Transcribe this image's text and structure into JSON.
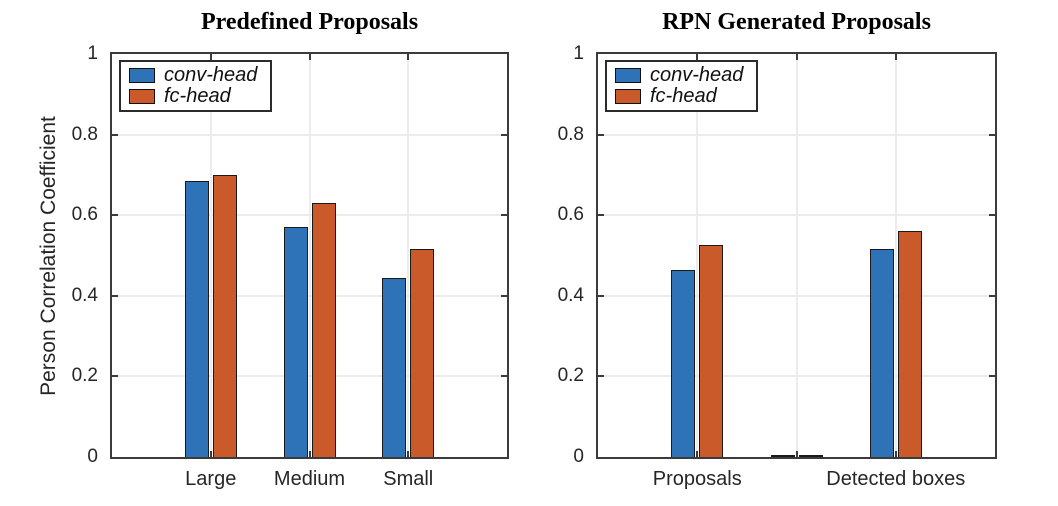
{
  "figure": {
    "background": "#ffffff",
    "axis_color": "#3b3b3b",
    "text_color": "#262626",
    "grid_color": "#ececec",
    "bar_edge_color": "#1a1a1a"
  },
  "chart_data": [
    {
      "type": "bar",
      "title": "Predefined Proposals",
      "ylabel": "Person Correlation Coefficient",
      "xlabel": "",
      "categories": [
        "Large",
        "Medium",
        "Small"
      ],
      "series": [
        {
          "name": "conv-head",
          "color": "#2e73b8",
          "values": [
            0.685,
            0.57,
            0.445
          ]
        },
        {
          "name": "fc-head",
          "color": "#cb5a2b",
          "values": [
            0.7,
            0.63,
            0.515
          ]
        }
      ],
      "ylim": [
        0,
        1
      ],
      "yticks": [
        0,
        0.2,
        0.4,
        0.6,
        0.8,
        1
      ],
      "ytick_labels": [
        "0",
        "0.2",
        "0.4",
        "0.6",
        "0.8",
        "1"
      ],
      "grid": true,
      "legend": {
        "position": "top-left",
        "entries": [
          "conv-head",
          "fc-head"
        ]
      }
    },
    {
      "type": "bar",
      "title": "RPN Generated Proposals",
      "ylabel": "",
      "xlabel": "",
      "categories": [
        "Proposals",
        "",
        "Detected boxes"
      ],
      "series": [
        {
          "name": "conv-head",
          "color": "#2e73b8",
          "values": [
            0.465,
            0,
            0.515
          ]
        },
        {
          "name": "fc-head",
          "color": "#cb5a2b",
          "values": [
            0.525,
            0,
            0.56
          ]
        }
      ],
      "ylim": [
        0,
        1
      ],
      "yticks": [
        0,
        0.2,
        0.4,
        0.6,
        0.8,
        1
      ],
      "ytick_labels": [
        "0",
        "0.2",
        "0.4",
        "0.6",
        "0.8",
        "1"
      ],
      "grid": true,
      "legend": {
        "position": "top-left",
        "entries": [
          "conv-head",
          "fc-head"
        ]
      }
    }
  ]
}
